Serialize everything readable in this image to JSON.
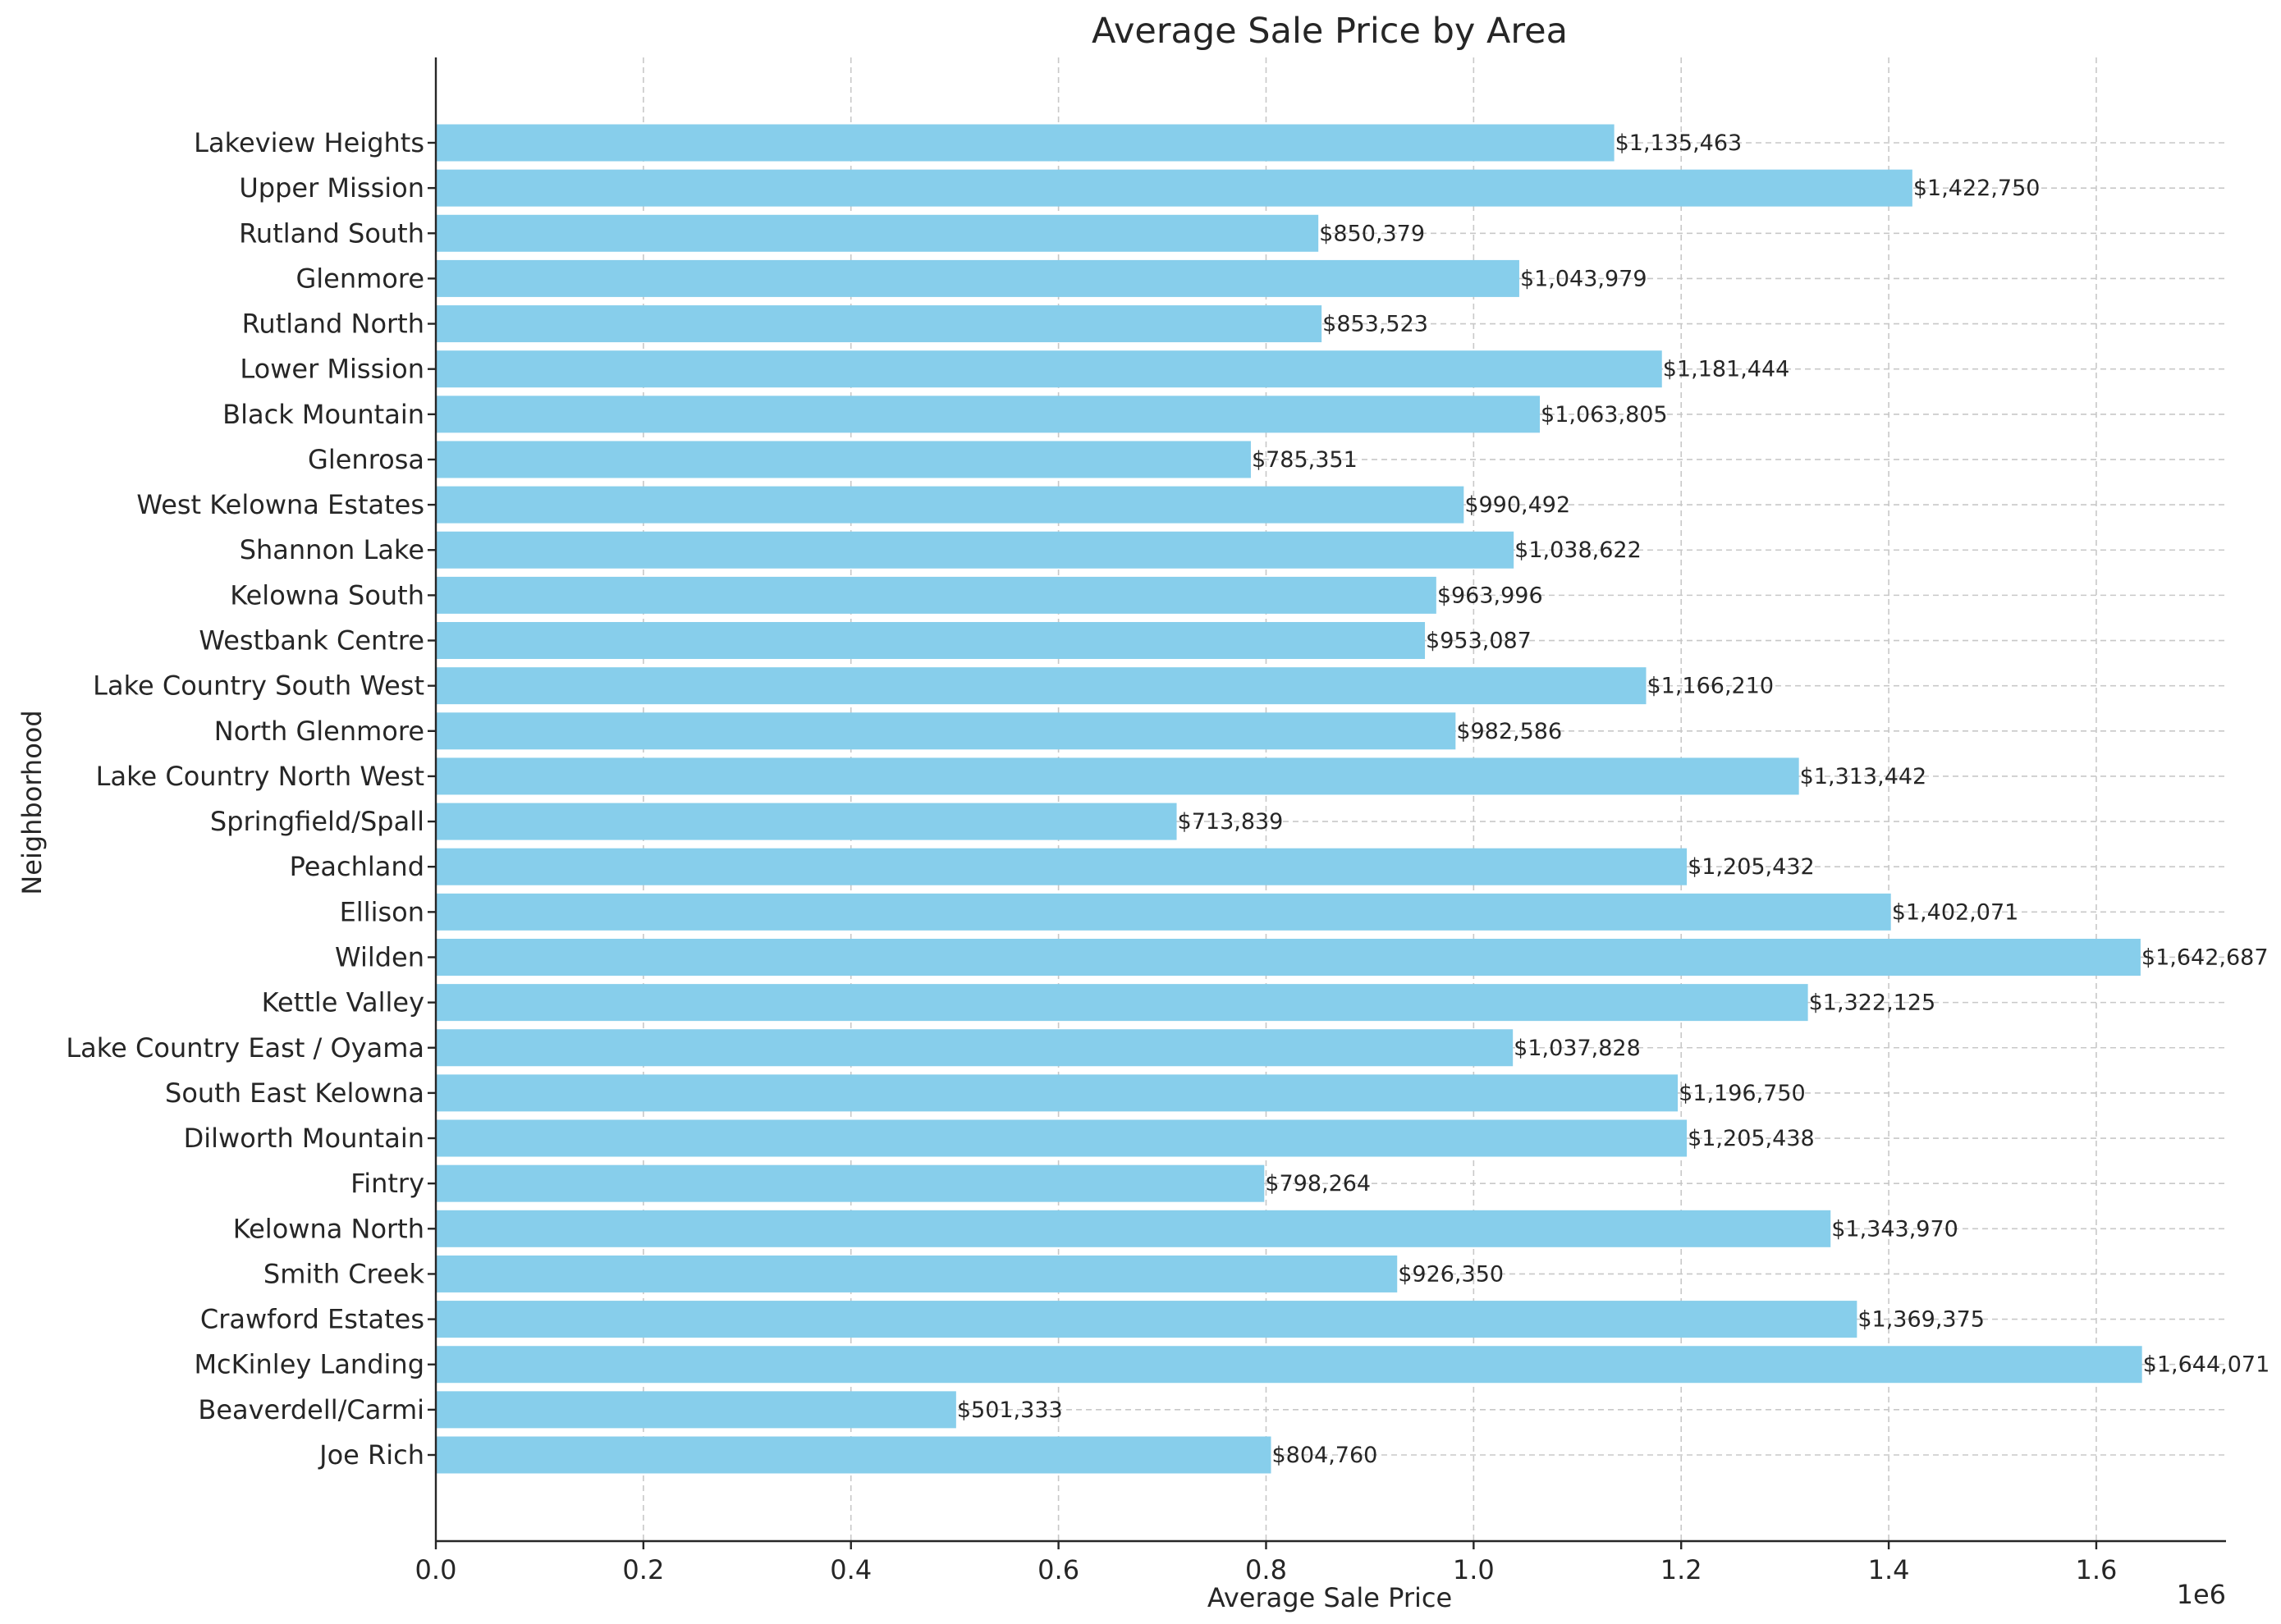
{
  "colors": {
    "bar": "#87ceeb",
    "text": "#262626",
    "grid": "#c8c8c8"
  },
  "chart_data": {
    "type": "bar",
    "orientation": "horizontal",
    "title": "Average Sale Price by Area",
    "xlabel": "Average Sale Price",
    "ylabel": "Neighborhood",
    "x_offset_label": "1e6",
    "xlim": [
      0,
      1.725
    ],
    "x_ticks": [
      "0.0",
      "0.2",
      "0.4",
      "0.6",
      "0.8",
      "1.0",
      "1.2",
      "1.4",
      "1.6"
    ],
    "grid": true,
    "categories": [
      "Lakeview Heights",
      "Upper Mission",
      "Rutland South",
      "Glenmore",
      "Rutland North",
      "Lower Mission",
      "Black Mountain",
      "Glenrosa",
      "West Kelowna Estates",
      "Shannon Lake",
      "Kelowna South",
      "Westbank Centre",
      "Lake Country South West",
      "North Glenmore",
      "Lake Country North West",
      "Springfield/Spall",
      "Peachland",
      "Ellison",
      "Wilden",
      "Kettle Valley",
      "Lake Country East / Oyama",
      "South East Kelowna",
      "Dilworth Mountain",
      "Fintry",
      "Kelowna North",
      "Smith Creek",
      "Crawford Estates",
      "McKinley Landing",
      "Beaverdell/Carmi",
      "Joe Rich"
    ],
    "values": [
      1135463,
      1422750,
      850379,
      1043979,
      853523,
      1181444,
      1063805,
      785351,
      990492,
      1038622,
      963996,
      953087,
      1166210,
      982586,
      1313442,
      713839,
      1205432,
      1402071,
      1642687,
      1322125,
      1037828,
      1196750,
      1205438,
      798264,
      1343970,
      926350,
      1369375,
      1644071,
      501333,
      804760
    ],
    "value_labels": [
      "$1,135,463",
      "$1,422,750",
      "$850,379",
      "$1,043,979",
      "$853,523",
      "$1,181,444",
      "$1,063,805",
      "$785,351",
      "$990,492",
      "$1,038,622",
      "$963,996",
      "$953,087",
      "$1,166,210",
      "$982,586",
      "$1,313,442",
      "$713,839",
      "$1,205,432",
      "$1,402,071",
      "$1,642,687",
      "$1,322,125",
      "$1,037,828",
      "$1,196,750",
      "$1,205,438",
      "$798,264",
      "$1,343,970",
      "$926,350",
      "$1,369,375",
      "$1,644,071",
      "$501,333",
      "$804,760"
    ]
  }
}
